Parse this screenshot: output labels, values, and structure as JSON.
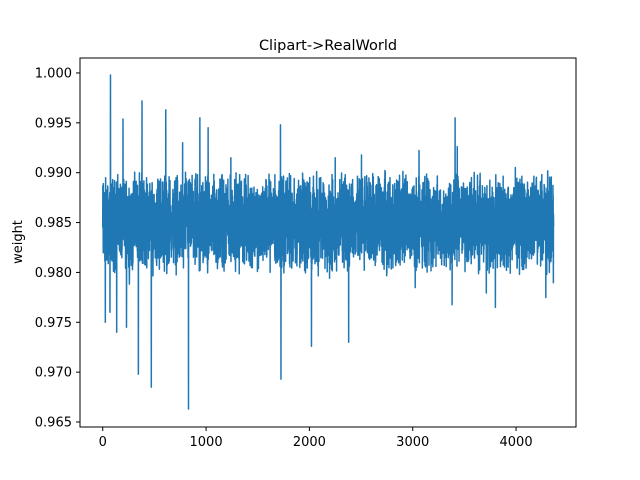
{
  "chart_data": {
    "type": "line",
    "title": "Clipart->RealWorld",
    "xlabel": "",
    "ylabel": "weight",
    "xlim": [
      -220,
      4580
    ],
    "ylim": [
      0.9645,
      1.0015
    ],
    "xticks": [
      0,
      1000,
      2000,
      3000,
      4000
    ],
    "xtick_labels": [
      "0",
      "1000",
      "2000",
      "3000",
      "4000"
    ],
    "yticks": [
      0.965,
      0.97,
      0.975,
      0.98,
      0.985,
      0.99,
      0.995,
      1.0
    ],
    "ytick_labels": [
      "0.965",
      "0.970",
      "0.975",
      "0.980",
      "0.985",
      "0.990",
      "0.995",
      "1.000"
    ],
    "grid": false,
    "series": [
      {
        "name": "weight",
        "color": "#1f77b4",
        "n_points": 4365,
        "mean": 0.985,
        "typical_low": 0.98,
        "typical_high": 0.9895,
        "notable_points": [
          {
            "x": 0,
            "y": 0.9845
          },
          {
            "x": 25,
            "y": 0.975
          },
          {
            "x": 70,
            "y": 0.976
          },
          {
            "x": 75,
            "y": 0.9998
          },
          {
            "x": 135,
            "y": 0.974
          },
          {
            "x": 230,
            "y": 0.9745
          },
          {
            "x": 345,
            "y": 0.9698
          },
          {
            "x": 380,
            "y": 0.9972
          },
          {
            "x": 470,
            "y": 0.9685
          },
          {
            "x": 610,
            "y": 0.9963
          },
          {
            "x": 830,
            "y": 0.9663
          },
          {
            "x": 940,
            "y": 0.9955
          },
          {
            "x": 1020,
            "y": 0.9945
          },
          {
            "x": 1240,
            "y": 0.9915
          },
          {
            "x": 1720,
            "y": 0.9948
          },
          {
            "x": 1725,
            "y": 0.9693
          },
          {
            "x": 2020,
            "y": 0.9726
          },
          {
            "x": 2250,
            "y": 0.9915
          },
          {
            "x": 2380,
            "y": 0.973
          },
          {
            "x": 3410,
            "y": 0.9955
          },
          {
            "x": 3800,
            "y": 0.9765
          },
          {
            "x": 4355,
            "y": 0.9845
          }
        ]
      }
    ]
  }
}
